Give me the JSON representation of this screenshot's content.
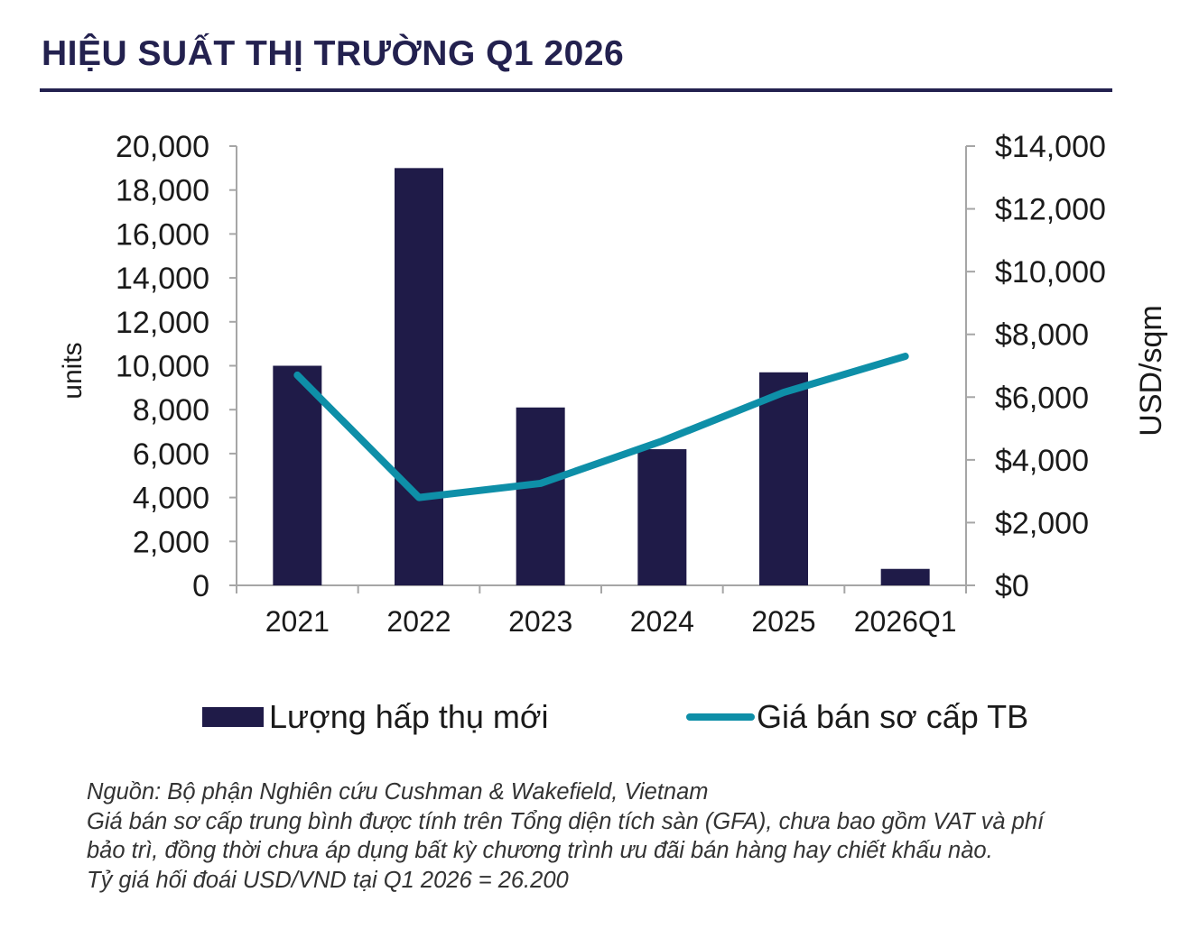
{
  "title": "HIỆU SUẤT THỊ TRƯỜNG Q1 2026",
  "chart_data": {
    "type": "bar",
    "categories": [
      "2021",
      "2022",
      "2023",
      "2024",
      "2025",
      "2026Q1"
    ],
    "series": [
      {
        "name": "Lượng hấp thụ mới",
        "type": "bar",
        "axis": "left",
        "color": "#1f1b48",
        "values": [
          10000,
          19000,
          8100,
          6200,
          9700,
          750
        ]
      },
      {
        "name": "Giá bán sơ cấp TB",
        "type": "line",
        "axis": "right",
        "color": "#0e8fa8",
        "values": [
          6700,
          2800,
          3250,
          4600,
          6150,
          7300
        ]
      }
    ],
    "ylabel": "units",
    "y2label": "USD/sqm",
    "ylim": [
      0,
      20000
    ],
    "y2lim": [
      0,
      14000
    ],
    "yticks": [
      "0",
      "2,000",
      "4,000",
      "6,000",
      "8,000",
      "10,000",
      "12,000",
      "14,000",
      "16,000",
      "18,000",
      "20,000"
    ],
    "y2ticks": [
      "$0",
      "$2,000",
      "$4,000",
      "$6,000",
      "$8,000",
      "$10,000",
      "$12,000",
      "$14,000"
    ],
    "legend_position": "bottom",
    "grid": false
  },
  "legend": {
    "bar_label": "Lượng hấp thụ mới",
    "line_label": "Giá bán sơ cấp TB"
  },
  "notes": [
    "Nguồn: Bộ phận Nghiên cứu Cushman & Wakefield, Vietnam",
    "Giá bán sơ cấp trung bình được tính trên Tổng diện tích sàn (GFA), chưa bao gồm VAT và phí",
    "bảo trì, đồng thời chưa áp dụng bất kỳ chương trình ưu đãi bán hàng hay chiết khấu nào.",
    "Tỷ giá hối đoái USD/VND tại Q1 2026 = 26.200"
  ]
}
